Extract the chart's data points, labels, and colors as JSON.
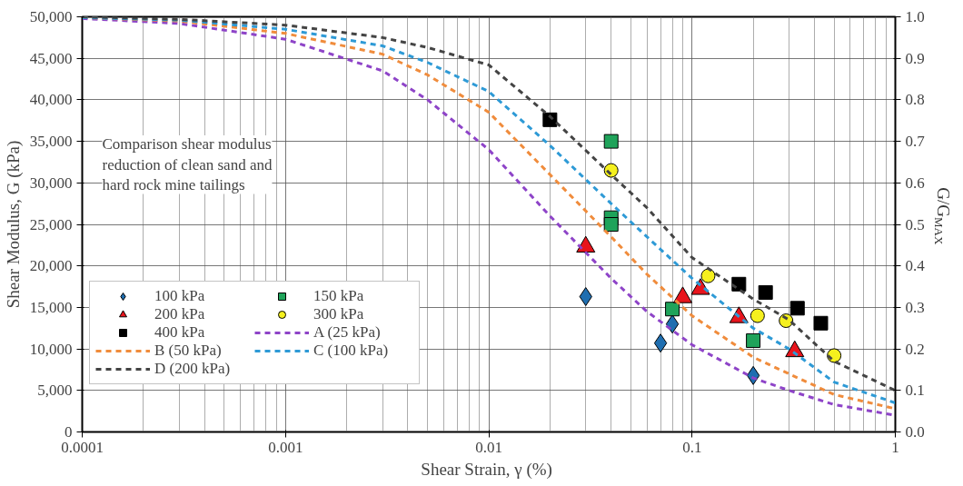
{
  "chart_data": {
    "type": "scatter",
    "xlabel": "Shear Strain, γ  (%)",
    "ylabel": "Shear Modulus, G (kPa)",
    "y2label": "G/G$_{MAX}$",
    "log": "x",
    "grid": true,
    "legend": "left",
    "xlim": [
      0.0001,
      1
    ],
    "xticks": [
      {
        "value": 0.0001,
        "label": "0.0001"
      },
      {
        "value": 0.001,
        "label": "0.001"
      },
      {
        "value": 0.01,
        "label": "0.01"
      },
      {
        "value": 0.1,
        "label": "0.1"
      },
      {
        "value": 1,
        "label": "1"
      }
    ],
    "ylim": [
      0,
      50000
    ],
    "yticks": [
      {
        "value": 0,
        "label": "0"
      },
      {
        "value": 5000,
        "label": "5,000"
      },
      {
        "value": 10000,
        "label": "10,000"
      },
      {
        "value": 15000,
        "label": "15,000"
      },
      {
        "value": 20000,
        "label": "20,000"
      },
      {
        "value": 25000,
        "label": "25,000"
      },
      {
        "value": 30000,
        "label": "30,000"
      },
      {
        "value": 35000,
        "label": "35,000"
      },
      {
        "value": 40000,
        "label": "40,000"
      },
      {
        "value": 45000,
        "label": "45,000"
      },
      {
        "value": 50000,
        "label": "50,000"
      }
    ],
    "y2lim": [
      0,
      1
    ],
    "y2ticks": [
      {
        "value": 0,
        "label": "0.0"
      },
      {
        "value": 0.1,
        "label": "0.1"
      },
      {
        "value": 0.2,
        "label": "0.2"
      },
      {
        "value": 0.3,
        "label": "0.3"
      },
      {
        "value": 0.4,
        "label": "0.4"
      },
      {
        "value": 0.5,
        "label": "0.5"
      },
      {
        "value": 0.6,
        "label": "0.6"
      },
      {
        "value": 0.7,
        "label": "0.7"
      },
      {
        "value": 0.8,
        "label": "0.8"
      },
      {
        "value": 0.9,
        "label": "0.9"
      },
      {
        "value": 1,
        "label": "1.0"
      }
    ],
    "annotations": [
      "Comparison shear modulus\nreduction of clean sand and\nhard rock mine tailings"
    ],
    "series": [
      {
        "name": "100 kPa",
        "type": "scatter",
        "marker": "diamond",
        "color": "#1f6eb0",
        "x": [
          0.03,
          0.07,
          0.08,
          0.2
        ],
        "values": [
          16300,
          10700,
          13000,
          6800
        ]
      },
      {
        "name": "150 kPa",
        "type": "scatter",
        "marker": "square",
        "color": "#1fa35a",
        "x": [
          0.04,
          0.04,
          0.04,
          0.08,
          0.2
        ],
        "values": [
          35000,
          25800,
          25000,
          14800,
          11000
        ]
      },
      {
        "name": "200 kPa",
        "type": "scatter",
        "marker": "triangle",
        "color": "#e8141c",
        "x": [
          0.03,
          0.09,
          0.11,
          0.17,
          0.32
        ],
        "values": [
          22300,
          16200,
          17200,
          13800,
          9700
        ]
      },
      {
        "name": "300 kPa",
        "type": "scatter",
        "marker": "circle",
        "color": "#f5f01e",
        "x": [
          0.04,
          0.12,
          0.21,
          0.29,
          0.5
        ],
        "values": [
          31500,
          18800,
          14000,
          13400,
          9200
        ]
      },
      {
        "name": "400 kPa",
        "type": "scatter",
        "marker": "square",
        "color": "#000000",
        "x": [
          0.02,
          0.17,
          0.23,
          0.33,
          0.43
        ],
        "values": [
          37600,
          17800,
          16800,
          14900,
          13100
        ]
      },
      {
        "name": "A (25 kPa)",
        "type": "line",
        "line_style": "dashed",
        "color": "#8e44c8",
        "x": [
          0.0001,
          0.0003,
          0.001,
          0.003,
          0.005,
          0.01,
          0.02,
          0.04,
          0.06,
          0.1,
          0.2,
          0.3,
          0.5,
          1
        ],
        "values": [
          49800,
          49200,
          47300,
          43500,
          40000,
          34000,
          26000,
          18500,
          14500,
          10500,
          6500,
          5000,
          3300,
          2000
        ]
      },
      {
        "name": "B (50 kPa)",
        "type": "line",
        "line_style": "dashed",
        "color": "#f08c3c",
        "x": [
          0.0001,
          0.0003,
          0.001,
          0.003,
          0.005,
          0.01,
          0.02,
          0.04,
          0.06,
          0.1,
          0.2,
          0.3,
          0.5,
          1
        ],
        "values": [
          49900,
          49500,
          48000,
          45500,
          43000,
          38500,
          31000,
          23500,
          19000,
          14000,
          9000,
          7000,
          4500,
          2800
        ]
      },
      {
        "name": "C (100 kPa)",
        "type": "line",
        "line_style": "dashed",
        "color": "#2e9ad6",
        "x": [
          0.0001,
          0.0003,
          0.001,
          0.003,
          0.005,
          0.01,
          0.02,
          0.04,
          0.06,
          0.1,
          0.2,
          0.3,
          0.5,
          1
        ],
        "values": [
          49900,
          49600,
          48500,
          46500,
          44500,
          41000,
          34500,
          27500,
          23500,
          18500,
          12500,
          10000,
          6000,
          3500
        ]
      },
      {
        "name": "D (200 kPa)",
        "type": "line",
        "line_style": "dashed",
        "color": "#444444",
        "x": [
          0.0001,
          0.0003,
          0.001,
          0.003,
          0.005,
          0.01,
          0.02,
          0.04,
          0.06,
          0.1,
          0.2,
          0.3,
          0.5,
          1
        ],
        "values": [
          50000,
          49700,
          49000,
          47500,
          46300,
          44200,
          38000,
          31000,
          27000,
          21000,
          16000,
          13500,
          8500,
          5000
        ]
      }
    ]
  }
}
